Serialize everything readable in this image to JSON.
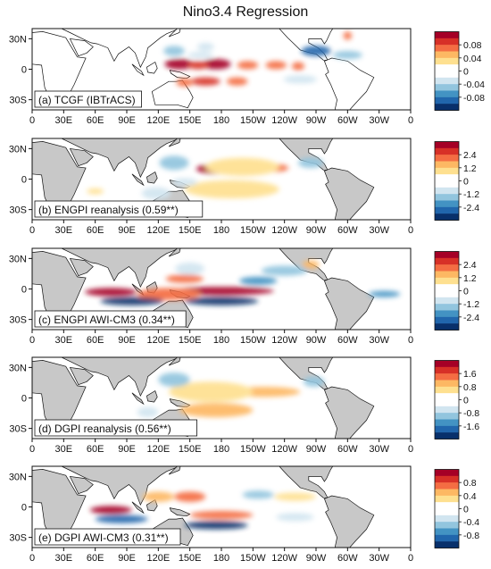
{
  "chart_data": {
    "type": "heatmap",
    "title": "Nino3.4 Regression",
    "lat_ticks": [
      "30N",
      "0",
      "30S"
    ],
    "lon_ticks": [
      "0",
      "30E",
      "60E",
      "90E",
      "120E",
      "150E",
      "180",
      "150W",
      "120W",
      "90W",
      "60W",
      "30W",
      "0"
    ],
    "land_colors": {
      "panel_a": "#ffffff",
      "panels_b_to_e": "#c8c8c8"
    },
    "colorbar_colors": [
      "#08306b",
      "#2166ac",
      "#4393c3",
      "#92c5de",
      "#d1e5f0",
      "#ffffff",
      "#ffffff",
      "#fee090",
      "#fdb863",
      "#f46d43",
      "#d73027",
      "#a50026"
    ],
    "panels": [
      {
        "label": "(a) TCGF (IBTrACS)",
        "colorbar_ticks": [
          "0.08",
          "0.04",
          "0",
          "-0.04",
          "-0.08"
        ],
        "patches": [
          {
            "lon": 140,
            "lat": 5,
            "w": 14,
            "h": 5,
            "v": 0.9
          },
          {
            "lon": 175,
            "lat": 5,
            "w": 14,
            "h": 5,
            "v": 0.9
          },
          {
            "lon": 158,
            "lat": 4,
            "w": 10,
            "h": 4,
            "v": 0.7
          },
          {
            "lon": 205,
            "lat": 4,
            "w": 10,
            "h": 4,
            "v": 0.6
          },
          {
            "lon": 232,
            "lat": 4,
            "w": 10,
            "h": 4,
            "v": 0.6
          },
          {
            "lon": 253,
            "lat": 3,
            "w": 6,
            "h": 4,
            "v": 0.6
          },
          {
            "lon": 165,
            "lat": -12,
            "w": 14,
            "h": 4,
            "v": 0.8
          },
          {
            "lon": 195,
            "lat": -12,
            "w": 10,
            "h": 4,
            "v": 0.6
          },
          {
            "lon": 145,
            "lat": -13,
            "w": 8,
            "h": 4,
            "v": 0.6
          },
          {
            "lon": 135,
            "lat": 18,
            "w": 10,
            "h": 5,
            "v": -0.4
          },
          {
            "lon": 165,
            "lat": 22,
            "w": 8,
            "h": 4,
            "v": -0.3
          },
          {
            "lon": 270,
            "lat": 18,
            "w": 14,
            "h": 5,
            "v": -0.8
          },
          {
            "lon": 300,
            "lat": 14,
            "w": 14,
            "h": 4,
            "v": -0.5
          },
          {
            "lon": 255,
            "lat": -10,
            "w": 16,
            "h": 4,
            "v": -0.3
          },
          {
            "lon": 160,
            "lat": 14,
            "w": 12,
            "h": 3,
            "v": -0.3
          },
          {
            "lon": 300,
            "lat": 33,
            "w": 4,
            "h": 4,
            "v": 0.5
          }
        ]
      },
      {
        "label": "(b) ENGPI reanalysis (0.59**)",
        "colorbar_ticks": [
          "2.4",
          "1.2",
          "0",
          "-1.2",
          "-2.4"
        ],
        "patches": [
          {
            "lon": 178,
            "lat": 10,
            "w": 22,
            "h": 5,
            "v": 0.95
          },
          {
            "lon": 180,
            "lat": -10,
            "w": 28,
            "h": 4,
            "v": 0.95
          },
          {
            "lon": 228,
            "lat": 11,
            "w": 16,
            "h": 4,
            "v": 0.55
          },
          {
            "lon": 200,
            "lat": 12,
            "w": 35,
            "h": 9,
            "v": 0.3
          },
          {
            "lon": 190,
            "lat": -10,
            "w": 45,
            "h": 9,
            "v": 0.3
          },
          {
            "lon": 135,
            "lat": 16,
            "w": 14,
            "h": 7,
            "v": -0.4
          },
          {
            "lon": 145,
            "lat": -3,
            "w": 12,
            "h": 4,
            "v": -0.3
          },
          {
            "lon": 265,
            "lat": 16,
            "w": 12,
            "h": 5,
            "v": -0.5
          },
          {
            "lon": 118,
            "lat": -14,
            "w": 14,
            "h": 6,
            "v": -0.3
          },
          {
            "lon": 60,
            "lat": -12,
            "w": 8,
            "h": 3,
            "v": 0.3
          }
        ]
      },
      {
        "label": "(c) ENGPI AWI-CM3 (0.34**)",
        "colorbar_ticks": [
          "2.4",
          "1.2",
          "0",
          "-1.2",
          "-2.4"
        ],
        "patches": [
          {
            "lon": 75,
            "lat": -3,
            "w": 25,
            "h": 4,
            "v": 0.95
          },
          {
            "lon": 180,
            "lat": -2,
            "w": 50,
            "h": 4,
            "v": 0.9
          },
          {
            "lon": 145,
            "lat": 10,
            "w": 18,
            "h": 4,
            "v": 0.5
          },
          {
            "lon": 130,
            "lat": -5,
            "w": 30,
            "h": 6,
            "v": 0.5
          },
          {
            "lon": 95,
            "lat": -12,
            "w": 30,
            "h": 4,
            "v": -0.9
          },
          {
            "lon": 180,
            "lat": -12,
            "w": 35,
            "h": 4,
            "v": -0.95
          },
          {
            "lon": 215,
            "lat": 8,
            "w": 18,
            "h": 4,
            "v": -0.6
          },
          {
            "lon": 240,
            "lat": 18,
            "w": 22,
            "h": 5,
            "v": -0.5
          },
          {
            "lon": 335,
            "lat": -5,
            "w": 15,
            "h": 3,
            "v": -0.6
          },
          {
            "lon": 265,
            "lat": 24,
            "w": 8,
            "h": 4,
            "v": 0.4
          },
          {
            "lon": 150,
            "lat": 20,
            "w": 14,
            "h": 6,
            "v": -0.3
          }
        ]
      },
      {
        "label": "(d) DGPI reanalysis (0.56**)",
        "colorbar_ticks": [
          "1.6",
          "0.8",
          "0",
          "-0.8",
          "-1.6"
        ],
        "patches": [
          {
            "lon": 170,
            "lat": 5,
            "w": 22,
            "h": 5,
            "v": 0.9
          },
          {
            "lon": 180,
            "lat": -12,
            "w": 15,
            "h": 4,
            "v": 0.95
          },
          {
            "lon": 220,
            "lat": 6,
            "w": 35,
            "h": 5,
            "v": 0.45
          },
          {
            "lon": 170,
            "lat": 6,
            "w": 40,
            "h": 10,
            "v": 0.3
          },
          {
            "lon": 175,
            "lat": -12,
            "w": 35,
            "h": 7,
            "v": 0.35
          },
          {
            "lon": 135,
            "lat": 18,
            "w": 15,
            "h": 7,
            "v": -0.4
          },
          {
            "lon": 268,
            "lat": 16,
            "w": 10,
            "h": 5,
            "v": -0.4
          },
          {
            "lon": 110,
            "lat": -14,
            "w": 10,
            "h": 5,
            "v": -0.2
          }
        ]
      },
      {
        "label": "(e) DGPI AWI-CM3 (0.31**)",
        "colorbar_ticks": [
          "0.8",
          "0.4",
          "0",
          "-0.4",
          "-0.8"
        ],
        "patches": [
          {
            "lon": 75,
            "lat": -3,
            "w": 20,
            "h": 4,
            "v": 0.9
          },
          {
            "lon": 150,
            "lat": 10,
            "w": 15,
            "h": 5,
            "v": 0.6
          },
          {
            "lon": 180,
            "lat": -8,
            "w": 30,
            "h": 4,
            "v": 0.55
          },
          {
            "lon": 250,
            "lat": 10,
            "w": 20,
            "h": 4,
            "v": 0.3
          },
          {
            "lon": 85,
            "lat": -12,
            "w": 25,
            "h": 4,
            "v": -0.8
          },
          {
            "lon": 175,
            "lat": -18,
            "w": 30,
            "h": 4,
            "v": -0.9
          },
          {
            "lon": 215,
            "lat": 12,
            "w": 15,
            "h": 4,
            "v": -0.5
          },
          {
            "lon": 120,
            "lat": 10,
            "w": 15,
            "h": 5,
            "v": 0.4
          },
          {
            "lon": 250,
            "lat": -10,
            "w": 18,
            "h": 4,
            "v": -0.3
          }
        ]
      }
    ]
  }
}
